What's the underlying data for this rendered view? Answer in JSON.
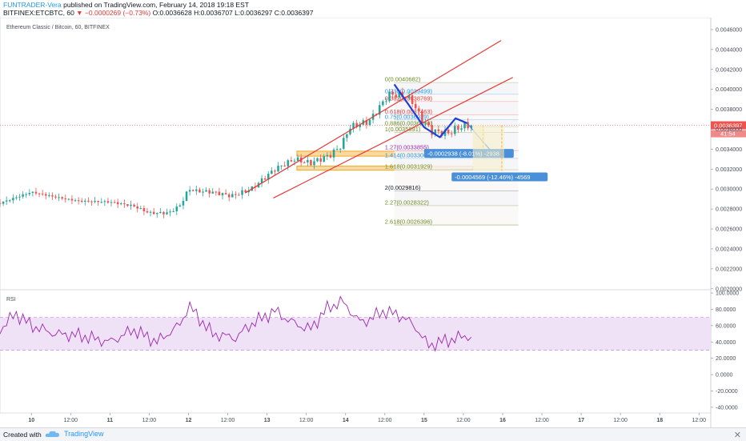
{
  "header": {
    "author": "FUNTRADER-Vera",
    "published": "published on TradingView.com, February 14, 2018 19:18 EST",
    "symbol_line_prefix": "BITFINEX:ETCBTC, 60",
    "arrow": "▼",
    "change": "−0.0000269 (−0.73%)",
    "ohlc": "O:0.0036628 H:0.0036707 L:0.0036297 C:0.0036397"
  },
  "legend": {
    "title": "Ethereum Classic / Bitcoin, 60, BITFINEX",
    "rsi_label": "RSI"
  },
  "footer": {
    "created_with": "Created with",
    "brand": "TradingView",
    "logo_icon": "tradingview-cloud-logo",
    "close_icon": "close-icon"
  },
  "colors": {
    "up": "#26a69a",
    "down": "#ef5350",
    "trendline": "#e53935",
    "projection": "#1e3fd6",
    "rsi": "#9c27b0",
    "rsi_band": "#efe1f6",
    "orange_zone": "#f5a623",
    "price_tag": "#ef5350",
    "measure_bg": "#4a90d9"
  },
  "chart_data": [
    {
      "type": "candlestick",
      "title": "Ethereum Classic / Bitcoin, 60, BITFINEX",
      "x_tick_labels": [
        "10",
        "12:00",
        "11",
        "12:00",
        "12",
        "12:00",
        "13",
        "12:00",
        "14",
        "12:00",
        "15",
        "12:00",
        "16",
        "12:00",
        "17",
        "12:00",
        "18",
        "12:00"
      ],
      "y_tick_labels": [
        "0.0046000",
        "0.0044000",
        "0.0042000",
        "0.0040000",
        "0.0038000",
        "0.0036000",
        "0.0034000",
        "0.0032000",
        "0.0030000",
        "0.0028000",
        "0.0026000",
        "0.0024000",
        "0.0022000",
        "0.0020000"
      ],
      "y_range": [
        0.00199,
        0.00472
      ],
      "x_range_days": [
        9.6,
        18.65
      ],
      "last_price": "0.0036397",
      "countdown": "41:54",
      "ohlc_key_points": [
        {
          "t": 9.6,
          "p": 0.00286
        },
        {
          "t": 10.0,
          "p": 0.00297
        },
        {
          "t": 10.3,
          "p": 0.00292
        },
        {
          "t": 10.6,
          "p": 0.00288
        },
        {
          "t": 11.0,
          "p": 0.00287
        },
        {
          "t": 11.3,
          "p": 0.00283
        },
        {
          "t": 11.5,
          "p": 0.00276
        },
        {
          "t": 11.75,
          "p": 0.00276
        },
        {
          "t": 11.9,
          "p": 0.00284
        },
        {
          "t": 12.0,
          "p": 0.003
        },
        {
          "t": 12.1,
          "p": 0.00298
        },
        {
          "t": 12.3,
          "p": 0.00297
        },
        {
          "t": 12.55,
          "p": 0.00293
        },
        {
          "t": 12.8,
          "p": 0.003
        },
        {
          "t": 13.1,
          "p": 0.0032
        },
        {
          "t": 13.35,
          "p": 0.0033
        },
        {
          "t": 13.55,
          "p": 0.00326
        },
        {
          "t": 13.8,
          "p": 0.00334
        },
        {
          "t": 13.95,
          "p": 0.00344
        },
        {
          "t": 14.05,
          "p": 0.00362
        },
        {
          "t": 14.3,
          "p": 0.00368
        },
        {
          "t": 14.55,
          "p": 0.00395
        },
        {
          "t": 14.75,
          "p": 0.00394
        },
        {
          "t": 14.85,
          "p": 0.00388
        },
        {
          "t": 14.95,
          "p": 0.00372
        },
        {
          "t": 15.1,
          "p": 0.00358
        },
        {
          "t": 15.3,
          "p": 0.00356
        },
        {
          "t": 15.45,
          "p": 0.00362
        },
        {
          "t": 15.55,
          "p": 0.00364
        },
        {
          "t": 15.62,
          "p": 0.00364
        }
      ],
      "fibonacci": [
        {
          "level": "0",
          "price": "0.0040682",
          "color": "#6b8e23"
        },
        {
          "level": "0.236",
          "price": "0.0039499",
          "color": "#2196f3"
        },
        {
          "level": "0.382",
          "price": "0.0038769",
          "color": "#e53935"
        },
        {
          "level": "0.618",
          "price": "0.0037463",
          "color": "#e53935"
        },
        {
          "level": "0.75",
          "price": "0.0036939",
          "color": "#2196f3"
        },
        {
          "level": "0.886",
          "price": "0.0036260",
          "color": "#6b8e23"
        },
        {
          "level": "1",
          "price": "0.0035691",
          "color": "#6b8e23"
        },
        {
          "level": "1.27",
          "price": "0.0033855",
          "color": "#9c27b0"
        },
        {
          "level": "1.414",
          "price": "0.0033063",
          "color": "#2196f3"
        },
        {
          "level": "1.618",
          "price": "0.0031929",
          "color": "#6b8e23"
        },
        {
          "level": "2",
          "price": "0.0029816",
          "color": "#131722"
        },
        {
          "level": "2.27",
          "price": "0.0028322",
          "color": "#6b8e23"
        },
        {
          "level": "2.618",
          "price": "0.0026396",
          "color": "#6b8e23"
        }
      ],
      "measurements": [
        {
          "label": "-0.0002938 (-8.01%) -2938",
          "from": 0.0036397,
          "to": 0.0033459
        },
        {
          "label": "-0.0004569 (-12.46%) -4569",
          "from": 0.0036397,
          "to": 0.0031828
        }
      ],
      "support_zones": [
        {
          "from": 0.00333,
          "to": 0.00338
        },
        {
          "from": 0.00319,
          "to": 0.00323
        }
      ]
    },
    {
      "type": "line",
      "title": "RSI",
      "y_tick_labels": [
        "100.0000",
        "80.0000",
        "60.0000",
        "40.0000",
        "20.0000",
        "0.0000",
        "-20.0000",
        "-40.0000"
      ],
      "y_range": [
        -47,
        104
      ],
      "band": [
        30,
        70
      ],
      "rsi_key_points": [
        {
          "t": 9.6,
          "v": 55
        },
        {
          "t": 9.8,
          "v": 75
        },
        {
          "t": 10.0,
          "v": 60
        },
        {
          "t": 10.3,
          "v": 50
        },
        {
          "t": 10.6,
          "v": 48
        },
        {
          "t": 11.0,
          "v": 40
        },
        {
          "t": 11.3,
          "v": 55
        },
        {
          "t": 11.6,
          "v": 40
        },
        {
          "t": 11.9,
          "v": 62
        },
        {
          "t": 12.0,
          "v": 85
        },
        {
          "t": 12.3,
          "v": 50
        },
        {
          "t": 12.6,
          "v": 45
        },
        {
          "t": 12.8,
          "v": 62
        },
        {
          "t": 13.1,
          "v": 78
        },
        {
          "t": 13.3,
          "v": 65
        },
        {
          "t": 13.55,
          "v": 55
        },
        {
          "t": 13.75,
          "v": 80
        },
        {
          "t": 13.95,
          "v": 90
        },
        {
          "t": 14.2,
          "v": 63
        },
        {
          "t": 14.5,
          "v": 78
        },
        {
          "t": 14.75,
          "v": 70
        },
        {
          "t": 14.92,
          "v": 55
        },
        {
          "t": 15.05,
          "v": 35
        },
        {
          "t": 15.2,
          "v": 40
        },
        {
          "t": 15.4,
          "v": 44
        },
        {
          "t": 15.55,
          "v": 48
        },
        {
          "t": 15.62,
          "v": 44
        }
      ]
    }
  ]
}
